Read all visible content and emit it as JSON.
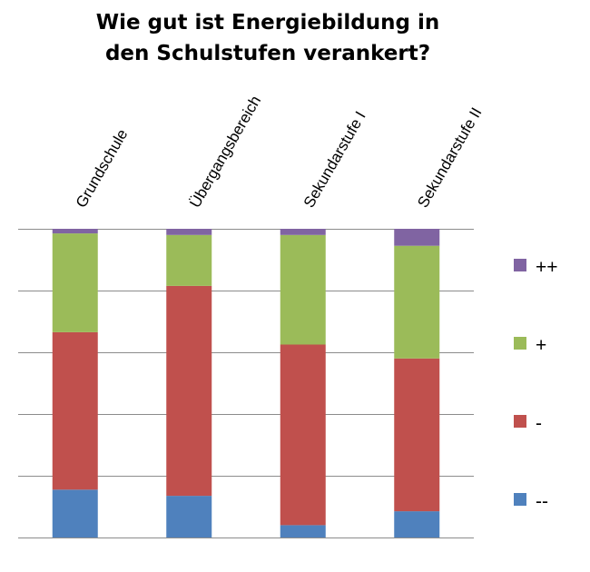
{
  "chart_data": {
    "type": "bar",
    "stacked": true,
    "title": [
      "Wie gut ist Energiebildung in",
      "den Schulstufen verankert?"
    ],
    "categories": [
      "Grundschule",
      "Übergangsbereich",
      "Sekundarstufe I",
      "Sekundarstufe II"
    ],
    "series": [
      {
        "name": "--",
        "color": "#4F81BD",
        "values": [
          15.5,
          13.5,
          4,
          8.5
        ]
      },
      {
        "name": "-",
        "color": "#C0504D",
        "values": [
          51,
          68,
          58.5,
          49.5
        ]
      },
      {
        "name": "+",
        "color": "#9BBB59",
        "values": [
          32,
          16.5,
          35.5,
          36.5
        ]
      },
      {
        "name": "++",
        "color": "#8064A2",
        "values": [
          1.5,
          2,
          2,
          5.5
        ]
      }
    ],
    "ylim": [
      0,
      100
    ],
    "ytick_step": 20,
    "grid": true,
    "legend_position": "right"
  }
}
